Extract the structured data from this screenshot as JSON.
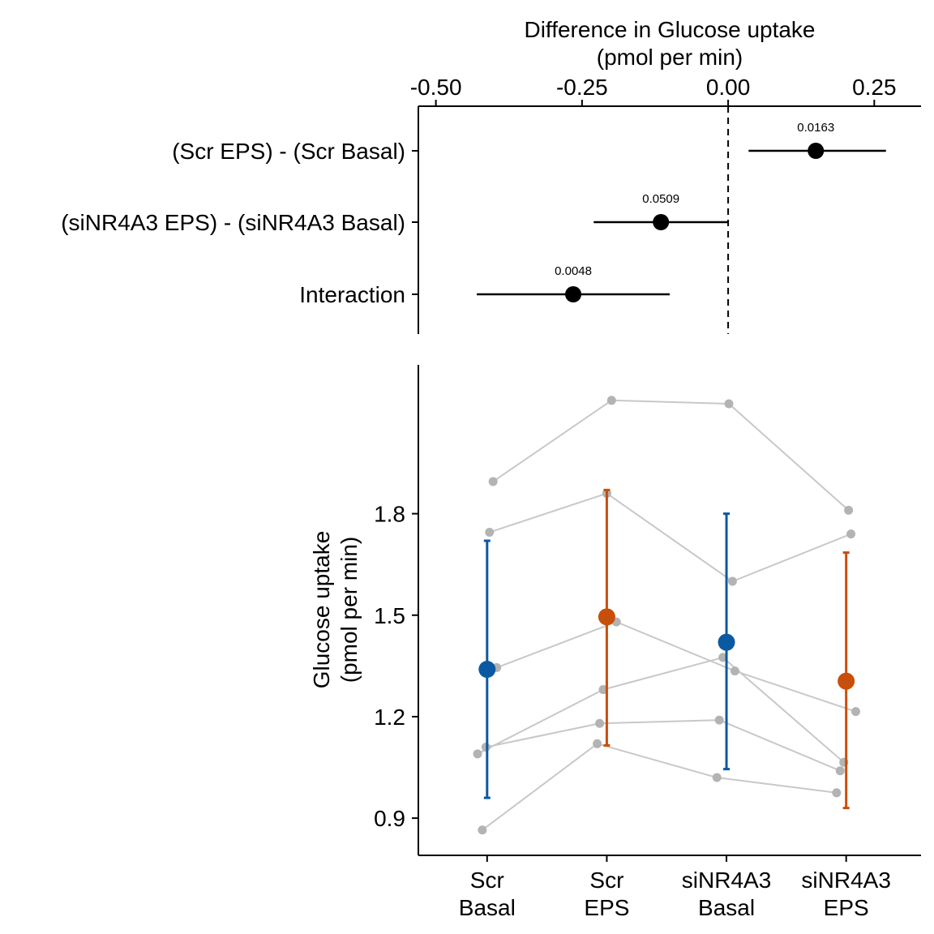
{
  "chart_data": [
    {
      "type": "forest",
      "title": "",
      "xlabel_lines": [
        "Difference in Glucose uptake",
        "(pmol per min)"
      ],
      "xlim": [
        -0.53,
        0.33
      ],
      "x_ticks": [
        -0.5,
        -0.25,
        0.0,
        0.25
      ],
      "x_tick_labels": [
        "-0.50",
        "-0.25",
        "0.00",
        "0.25"
      ],
      "reference_line": 0.0,
      "rows": [
        {
          "label": "(Scr EPS) - (Scr Basal)",
          "estimate": 0.15,
          "ci": [
            0.035,
            0.27
          ],
          "p_label": "0.0163"
        },
        {
          "label": "(siNR4A3 EPS) - (siNR4A3 Basal)",
          "estimate": -0.115,
          "ci": [
            -0.23,
            0.0
          ],
          "p_label": "0.0509"
        },
        {
          "label": "Interaction",
          "estimate": -0.265,
          "ci": [
            -0.43,
            -0.1
          ],
          "p_label": "0.0048"
        }
      ]
    },
    {
      "type": "scatter",
      "title": "",
      "ylabel_lines": [
        "Glucose uptake",
        "(pmol per min)"
      ],
      "ylim": [
        0.79,
        2.24
      ],
      "y_ticks": [
        0.9,
        1.2,
        1.5,
        1.8
      ],
      "y_tick_labels": [
        "0.9",
        "1.2",
        "1.5",
        "1.8"
      ],
      "groups": [
        {
          "label_lines": [
            "Scr",
            "Basal"
          ],
          "mean": 1.34,
          "ci": [
            0.96,
            1.72
          ],
          "color": "#0b5aa1"
        },
        {
          "label_lines": [
            "Scr",
            "EPS"
          ],
          "mean": 1.495,
          "ci": [
            1.115,
            1.87
          ],
          "color": "#c84f0a"
        },
        {
          "label_lines": [
            "siNR4A3",
            "Basal"
          ],
          "mean": 1.42,
          "ci": [
            1.045,
            1.8
          ],
          "color": "#0b5aa1"
        },
        {
          "label_lines": [
            "siNR4A3",
            "EPS"
          ],
          "mean": 1.305,
          "ci": [
            0.93,
            1.685
          ],
          "color": "#c84f0a"
        }
      ],
      "subjects": [
        {
          "values": [
            1.895,
            2.135,
            2.125,
            1.81
          ],
          "jitter": [
            0.05,
            0.04,
            0.02,
            0.02
          ]
        },
        {
          "values": [
            1.745,
            1.86,
            1.6,
            1.74
          ],
          "jitter": [
            0.02,
            0.0,
            0.05,
            0.04
          ]
        },
        {
          "values": [
            1.345,
            1.48,
            1.335,
            1.215
          ],
          "jitter": [
            0.08,
            0.08,
            0.07,
            0.08
          ]
        },
        {
          "values": [
            1.09,
            1.28,
            1.375,
            1.065
          ],
          "jitter": [
            -0.08,
            -0.03,
            -0.03,
            -0.02
          ]
        },
        {
          "values": [
            1.11,
            1.18,
            1.19,
            1.04
          ],
          "jitter": [
            -0.01,
            -0.06,
            -0.06,
            -0.05
          ]
        },
        {
          "values": [
            0.865,
            1.12,
            1.02,
            0.975
          ],
          "jitter": [
            -0.04,
            -0.08,
            -0.08,
            -0.08
          ]
        }
      ],
      "colors": {
        "subject_point": "#b3b3b3",
        "subject_line": "#c8c8c8"
      }
    }
  ]
}
